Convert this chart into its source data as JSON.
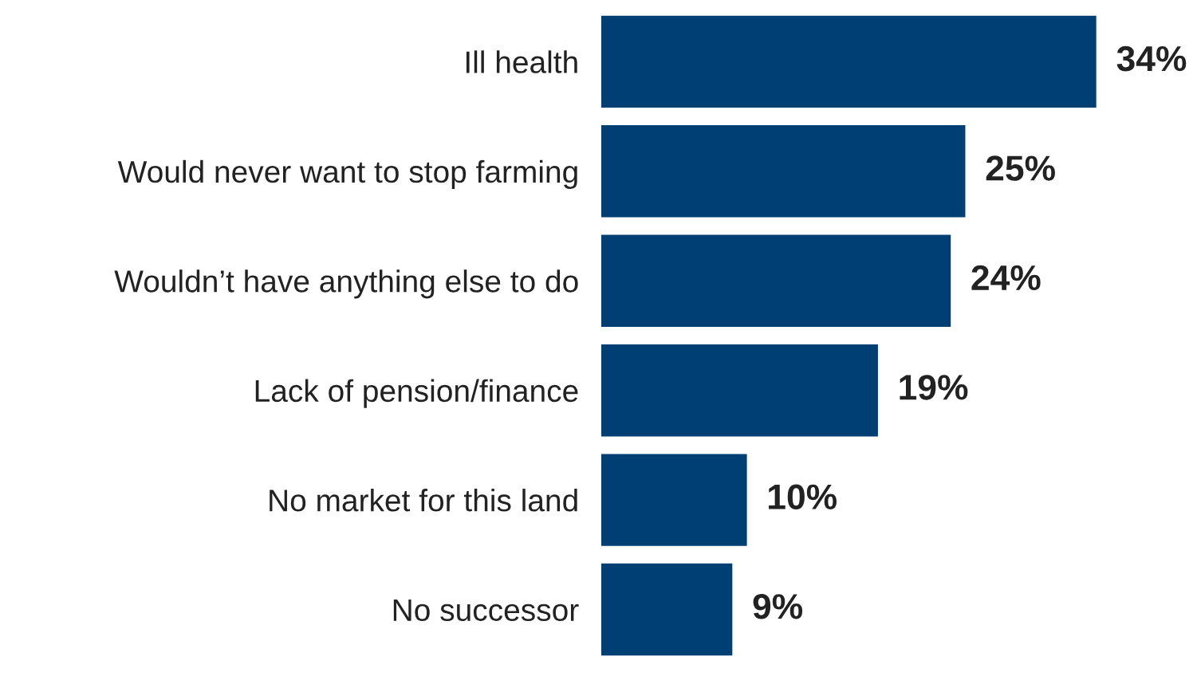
{
  "chart_data": {
    "type": "bar",
    "orientation": "horizontal",
    "categories": [
      "Ill health",
      "Would never want to stop farming",
      "Wouldn’t have anything else to do",
      "Lack of pension/finance",
      "No market for this land",
      "No successor"
    ],
    "values": [
      34,
      25,
      24,
      19,
      10,
      9
    ],
    "value_labels": [
      "34%",
      "25%",
      "24%",
      "19%",
      "10%",
      "9%"
    ],
    "color": "#003f73"
  }
}
